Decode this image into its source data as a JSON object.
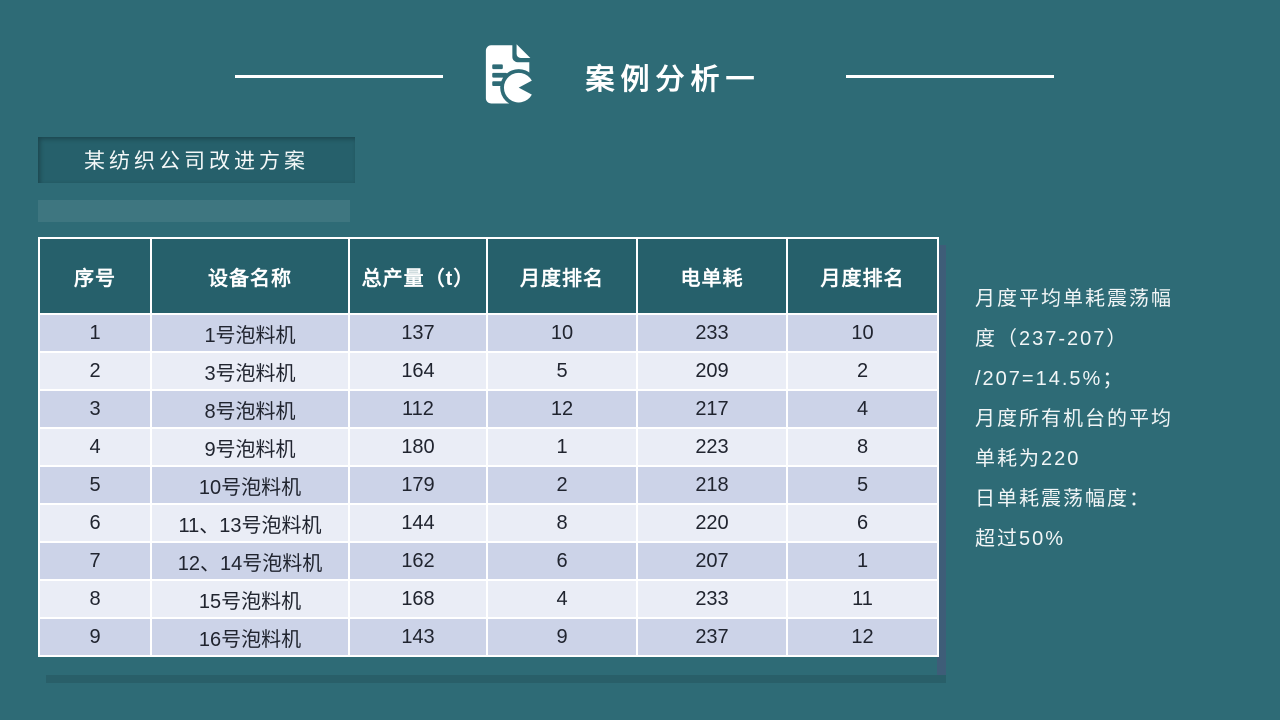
{
  "slide": {
    "title": "案例分析一",
    "subtitle": "某纺织公司改进方案"
  },
  "icons": {
    "title_icon": "document-pie-chart-icon"
  },
  "table": {
    "headers": [
      "序号",
      "设备名称",
      "总产量（t）",
      "月度排名",
      "电单耗",
      "月度排名"
    ],
    "rows": [
      [
        "1",
        "1号泡料机",
        "137",
        "10",
        "233",
        "10"
      ],
      [
        "2",
        "3号泡料机",
        "164",
        "5",
        "209",
        "2"
      ],
      [
        "3",
        "8号泡料机",
        "112",
        "12",
        "217",
        "4"
      ],
      [
        "4",
        "9号泡料机",
        "180",
        "1",
        "223",
        "8"
      ],
      [
        "5",
        "10号泡料机",
        "179",
        "2",
        "218",
        "5"
      ],
      [
        "6",
        "11、13号泡料机",
        "144",
        "8",
        "220",
        "6"
      ],
      [
        "7",
        "12、14号泡料机",
        "162",
        "6",
        "207",
        "1"
      ],
      [
        "8",
        "15号泡料机",
        "168",
        "4",
        "233",
        "11"
      ],
      [
        "9",
        "16号泡料机",
        "143",
        "9",
        "237",
        "12"
      ]
    ]
  },
  "notes": {
    "lines": [
      "月度平均单耗震荡幅",
      "度（237-207）",
      "/207=14.5%；",
      "月度所有机台的平均",
      "单耗为220",
      "日单耗震荡幅度：",
      "超过50%"
    ]
  },
  "colors": {
    "background": "#2e6b76",
    "panel_teal": "#26606b",
    "row_odd": "#ccd3e8",
    "row_even": "#eaedf6",
    "text_light": "#ffffff",
    "text_dark": "#20242f",
    "shadow_right": "#3e5d78",
    "shadow_bottom": "#295f69"
  }
}
